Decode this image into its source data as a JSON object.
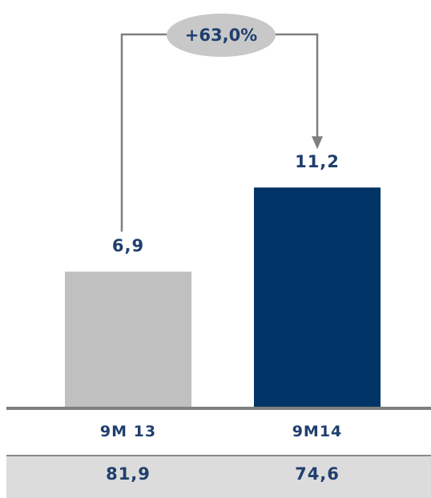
{
  "chart_data": {
    "type": "bar",
    "categories": [
      "9M 13",
      "9M14"
    ],
    "values": [
      6.9,
      11.2
    ],
    "value_labels": [
      "6,9",
      "11,2"
    ],
    "bar_colors": [
      "#c0c0c0",
      "#003366"
    ],
    "ylim": [
      0,
      13.5
    ],
    "grid": false,
    "growth_label": "+63,0%"
  },
  "summary": {
    "values": [
      "81,9",
      "74,6"
    ]
  },
  "colors": {
    "text": "#1f3f6e",
    "axis": "#7f7f7f",
    "connector": "#7f7f7f",
    "badge": "#c8c8c8",
    "summary_bg": "#dcdcdc"
  }
}
